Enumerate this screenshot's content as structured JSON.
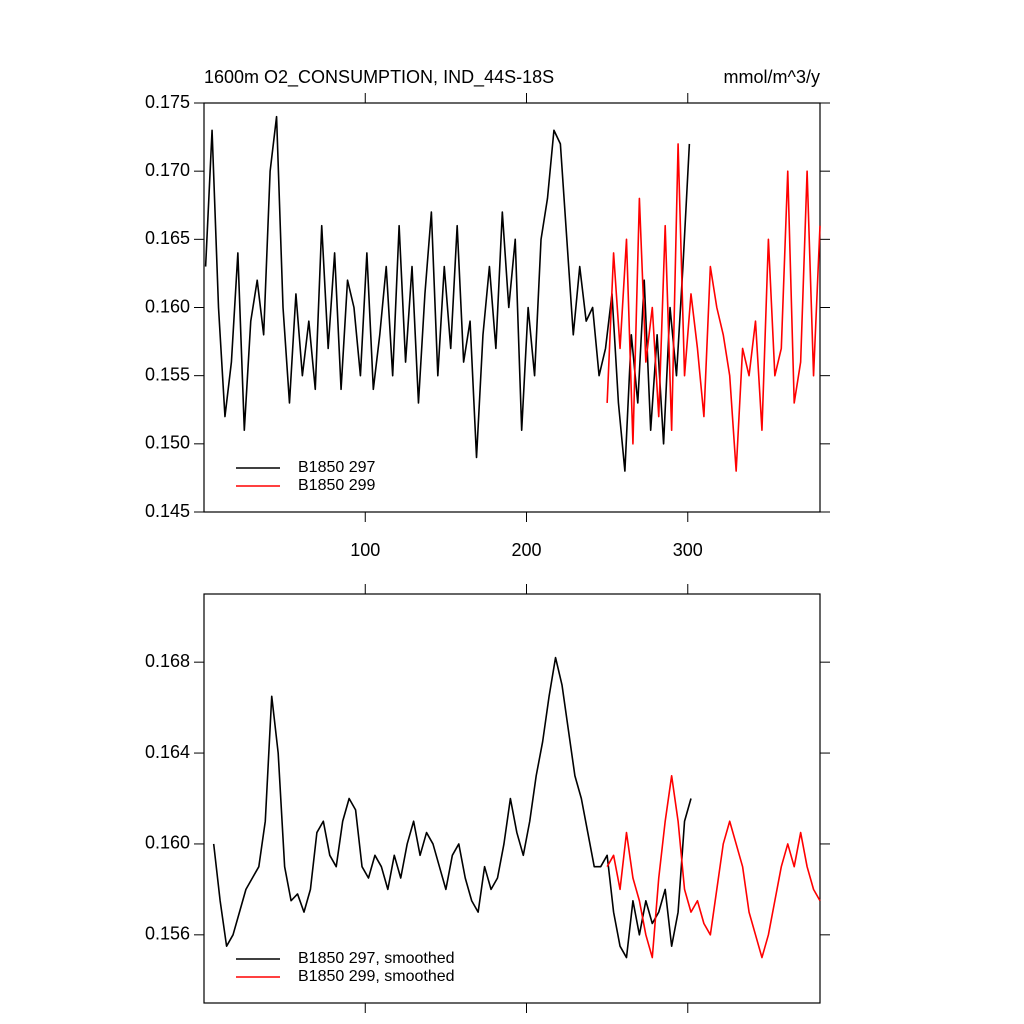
{
  "chart_data": [
    {
      "type": "line",
      "title": "1600m O2_CONSUMPTION, IND_44S-18S",
      "subtitle": "mmol/m^3/y",
      "xlim": [
        0,
        382
      ],
      "xticks": [
        100,
        200,
        300
      ],
      "xtick_labels": true,
      "ylim": [
        0.145,
        0.175
      ],
      "yticks": [
        0.145,
        {
          "value": 0.15,
          "label": "0.150"
        },
        0.155,
        {
          "value": 0.16,
          "label": "0.160"
        },
        0.165,
        {
          "value": 0.17,
          "label": "0.170"
        },
        0.175
      ],
      "legend": "lower-left",
      "series": [
        {
          "name": "B1850 297",
          "color": "#000000",
          "x": [
            1,
            5,
            9,
            13,
            17,
            21,
            25,
            29,
            33,
            37,
            41,
            45,
            49,
            53,
            57,
            61,
            65,
            69,
            73,
            77,
            81,
            85,
            89,
            93,
            97,
            101,
            105,
            109,
            113,
            117,
            121,
            125,
            129,
            133,
            137,
            141,
            145,
            149,
            153,
            157,
            161,
            165,
            169,
            173,
            177,
            181,
            185,
            189,
            193,
            197,
            201,
            205,
            209,
            213,
            217,
            221,
            225,
            229,
            233,
            237,
            241,
            245,
            249,
            253,
            257,
            261,
            265,
            269,
            273,
            277,
            281,
            285,
            289,
            293,
            297,
            301
          ],
          "values": [
            0.163,
            0.173,
            0.16,
            0.152,
            0.156,
            0.164,
            0.151,
            0.159,
            0.162,
            0.158,
            0.17,
            0.174,
            0.16,
            0.153,
            0.161,
            0.155,
            0.159,
            0.154,
            0.166,
            0.157,
            0.164,
            0.154,
            0.162,
            0.16,
            0.155,
            0.164,
            0.154,
            0.158,
            0.163,
            0.155,
            0.166,
            0.156,
            0.163,
            0.153,
            0.161,
            0.167,
            0.155,
            0.163,
            0.157,
            0.166,
            0.156,
            0.159,
            0.149,
            0.158,
            0.163,
            0.157,
            0.167,
            0.16,
            0.165,
            0.151,
            0.16,
            0.155,
            0.165,
            0.168,
            0.173,
            0.172,
            0.165,
            0.158,
            0.163,
            0.159,
            0.16,
            0.155,
            0.157,
            0.161,
            0.153,
            0.148,
            0.158,
            0.153,
            0.162,
            0.151,
            0.158,
            0.15,
            0.16,
            0.155,
            0.163,
            0.172
          ]
        },
        {
          "name": "B1850 299",
          "color": "#ff0000",
          "x": [
            250,
            254,
            258,
            262,
            266,
            270,
            274,
            278,
            282,
            286,
            290,
            294,
            298,
            302,
            306,
            310,
            314,
            318,
            322,
            326,
            330,
            334,
            338,
            342,
            346,
            350,
            354,
            358,
            362,
            366,
            370,
            374,
            378,
            382
          ],
          "values": [
            0.153,
            0.164,
            0.157,
            0.165,
            0.15,
            0.168,
            0.156,
            0.16,
            0.152,
            0.166,
            0.151,
            0.172,
            0.155,
            0.161,
            0.157,
            0.152,
            0.163,
            0.16,
            0.158,
            0.155,
            0.148,
            0.157,
            0.155,
            0.159,
            0.151,
            0.165,
            0.155,
            0.157,
            0.17,
            0.153,
            0.156,
            0.17,
            0.155,
            0.166
          ]
        }
      ]
    },
    {
      "type": "line",
      "xlim": [
        0,
        382
      ],
      "xticks": [
        100,
        200,
        300
      ],
      "xtick_labels": false,
      "ylim": [
        0.153,
        0.171
      ],
      "yticks": [
        0.156,
        {
          "value": 0.16,
          "label": "0.160"
        },
        0.164,
        0.168
      ],
      "legend": "lower-left",
      "series": [
        {
          "name": "B1850 297, smoothed",
          "color": "#000000",
          "x": [
            6,
            10,
            14,
            18,
            22,
            26,
            30,
            34,
            38,
            42,
            46,
            50,
            54,
            58,
            62,
            66,
            70,
            74,
            78,
            82,
            86,
            90,
            94,
            98,
            102,
            106,
            110,
            114,
            118,
            122,
            126,
            130,
            134,
            138,
            142,
            146,
            150,
            154,
            158,
            162,
            166,
            170,
            174,
            178,
            182,
            186,
            190,
            194,
            198,
            202,
            206,
            210,
            214,
            218,
            222,
            226,
            230,
            234,
            238,
            242,
            246,
            250,
            254,
            258,
            262,
            266,
            270,
            274,
            278,
            282,
            286,
            290,
            294,
            298,
            302
          ],
          "values": [
            0.16,
            0.1575,
            0.1555,
            0.156,
            0.157,
            0.158,
            0.1585,
            0.159,
            0.161,
            0.1665,
            0.164,
            0.159,
            0.1575,
            0.1578,
            0.157,
            0.158,
            0.1605,
            0.161,
            0.1595,
            0.159,
            0.161,
            0.162,
            0.1615,
            0.159,
            0.1585,
            0.1595,
            0.159,
            0.158,
            0.1595,
            0.1585,
            0.16,
            0.161,
            0.1595,
            0.1605,
            0.16,
            0.159,
            0.158,
            0.1595,
            0.16,
            0.1585,
            0.1575,
            0.157,
            0.159,
            0.158,
            0.1585,
            0.16,
            0.162,
            0.1605,
            0.1595,
            0.161,
            0.163,
            0.1645,
            0.1665,
            0.1682,
            0.167,
            0.165,
            0.163,
            0.162,
            0.1605,
            0.159,
            0.159,
            0.1595,
            0.157,
            0.1555,
            0.155,
            0.1575,
            0.156,
            0.1575,
            0.1565,
            0.157,
            0.158,
            0.1555,
            0.157,
            0.161,
            0.162
          ]
        },
        {
          "name": "B1850 299, smoothed",
          "color": "#ff0000",
          "x": [
            250,
            254,
            258,
            262,
            266,
            270,
            274,
            278,
            282,
            286,
            290,
            294,
            298,
            302,
            306,
            310,
            314,
            318,
            322,
            326,
            330,
            334,
            338,
            342,
            346,
            350,
            354,
            358,
            362,
            366,
            370,
            374,
            378,
            382
          ],
          "values": [
            0.159,
            0.1595,
            0.158,
            0.1605,
            0.1585,
            0.1575,
            0.156,
            0.155,
            0.1585,
            0.161,
            0.163,
            0.161,
            0.158,
            0.157,
            0.1575,
            0.1565,
            0.156,
            0.158,
            0.16,
            0.161,
            0.16,
            0.159,
            0.157,
            0.156,
            0.155,
            0.156,
            0.1575,
            0.159,
            0.16,
            0.159,
            0.1605,
            0.159,
            0.158,
            0.1575
          ]
        }
      ]
    }
  ]
}
